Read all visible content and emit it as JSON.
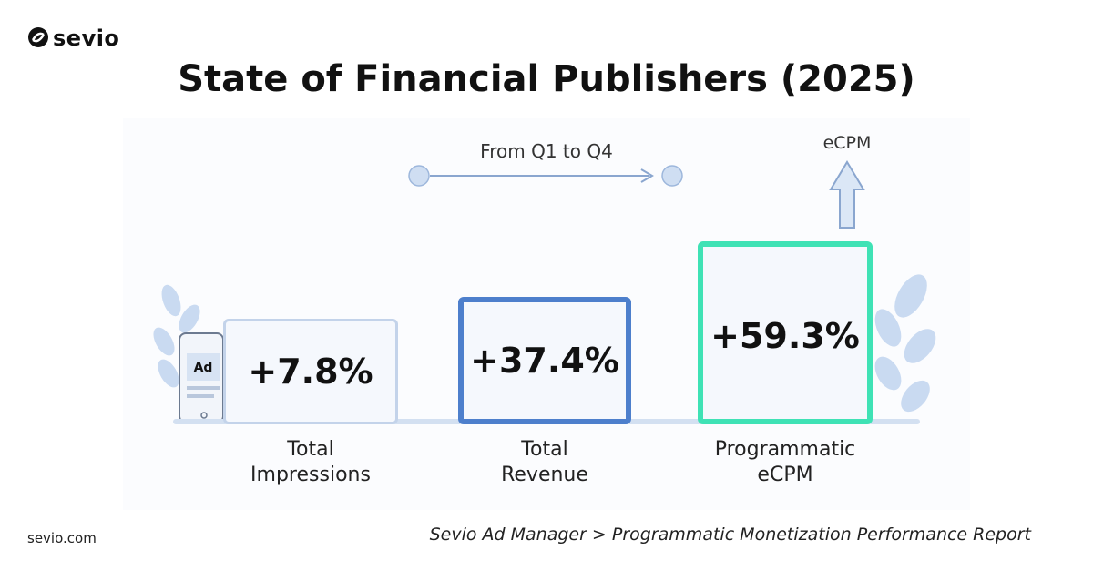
{
  "header": {
    "logo": "sevio",
    "title": "State of Financial Publishers (2025)"
  },
  "legend": {
    "period": "From Q1 to Q4",
    "metric": "eCPM"
  },
  "device": {
    "label": "Ad"
  },
  "cards": [
    {
      "value": "+7.8%",
      "label": "Total Impressions"
    },
    {
      "value": "+37.4%",
      "label": "Total Revenue"
    },
    {
      "value": "+59.3%",
      "label": "Programmatic eCPM"
    }
  ],
  "footer": {
    "site": "sevio.com",
    "source": "Sevio Ad Manager > Programmatic Monetization Performance Report"
  }
}
